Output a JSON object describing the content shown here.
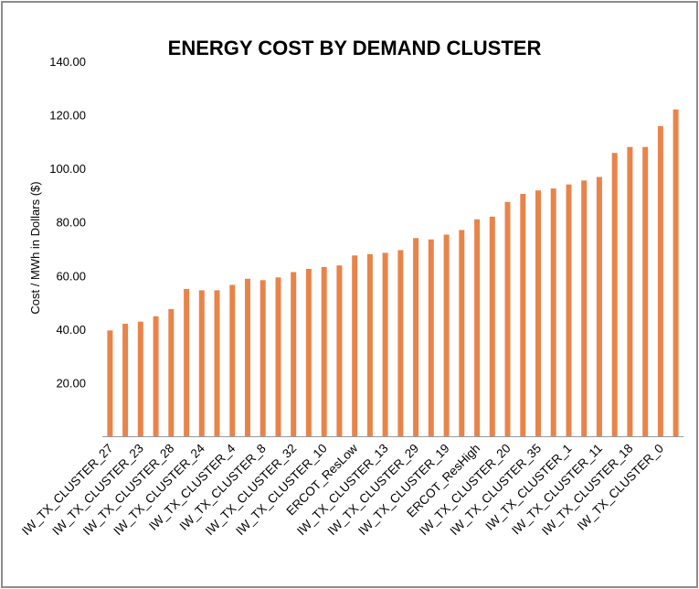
{
  "chart_data": {
    "type": "bar",
    "title": "ENERGY COST BY DEMAND CLUSTER",
    "xlabel": "",
    "ylabel": "Cost / MWh in Dollars ($)",
    "ylim": [
      0,
      140
    ],
    "yticks": [
      "20.00",
      "40.00",
      "60.00",
      "80.00",
      "100.00",
      "120.00",
      "140.00"
    ],
    "grid": false,
    "legend": "none",
    "bar_color": "#E8844A",
    "axis_color": "#9a9a9a",
    "categories": [
      "IW_TX_CLUSTER_27",
      "",
      "IW_TX_CLUSTER_23",
      "",
      "IW_TX_CLUSTER_28",
      "",
      "IW_TX_CLUSTER_24",
      "",
      "IW_TX_CLUSTER_4",
      "",
      "IW_TX_CLUSTER_8",
      "",
      "IW_TX_CLUSTER_32",
      "",
      "IW_TX_CLUSTER_10",
      "",
      "ERCOT_ResLow",
      "",
      "IW_TX_CLUSTER_13",
      "",
      "IW_TX_CLUSTER_29",
      "",
      "IW_TX_CLUSTER_19",
      "",
      "ERCOT_ResHigh",
      "",
      "IW_TX_CLUSTER_20",
      "",
      "IW_TX_CLUSTER_35",
      "",
      "IW_TX_CLUSTER_1",
      "",
      "IW_TX_CLUSTER_11",
      "",
      "IW_TX_CLUSTER_18",
      "",
      "IW_TX_CLUSTER_0",
      ""
    ],
    "values": [
      39.5,
      42.0,
      42.8,
      44.8,
      47.5,
      55.0,
      54.5,
      54.5,
      56.5,
      58.8,
      58.3,
      59.3,
      61.3,
      62.5,
      63.2,
      63.8,
      67.5,
      68.0,
      68.5,
      69.5,
      74.0,
      73.5,
      75.3,
      77.0,
      81.0,
      82.0,
      87.5,
      90.5,
      91.8,
      92.5,
      94.0,
      95.5,
      96.8,
      105.8,
      108.0,
      108.0,
      115.8,
      122.0
    ]
  }
}
